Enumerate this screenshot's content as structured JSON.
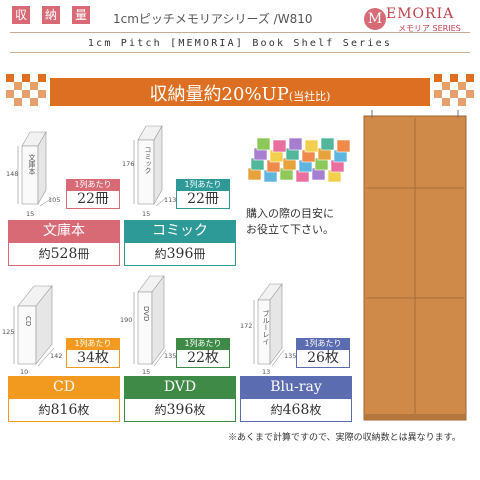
{
  "header": {
    "title_chars": [
      "収",
      "納",
      "量"
    ],
    "series_name": "1cmピッチメモリアシリーズ /W810",
    "subtitle": "1cm Pitch [MEMORIA] Book Shelf Series",
    "logo_text": "EMORIA",
    "logo_sub": "メモリア SERIES",
    "logo_mark": "M"
  },
  "banner": {
    "main": "収納量約20%UP",
    "suffix": "(当社比)"
  },
  "colors": {
    "accent_orange": "#dc6f21",
    "bunkobon": "#d86a76",
    "comic": "#2e9a97",
    "cd": "#f19a1f",
    "dvd": "#3e8a46",
    "bluray": "#5c6cb0"
  },
  "per_row_label": "1列あたり",
  "categories": [
    {
      "key": "bunkobon",
      "spine": "文庫本",
      "height": "148",
      "width": "105",
      "depth": "15",
      "per_row": "22冊",
      "name": "文庫本",
      "total_prefix": "約",
      "total_num": "528",
      "total_unit": "冊"
    },
    {
      "key": "comic",
      "spine": "コミック",
      "height": "176",
      "width": "113",
      "depth": "15",
      "per_row": "22冊",
      "name": "コミック",
      "total_prefix": "約",
      "total_num": "396",
      "total_unit": "冊"
    },
    {
      "key": "cd",
      "spine": "CD",
      "height": "125",
      "width": "142",
      "depth": "10",
      "per_row": "34枚",
      "name": "CD",
      "total_prefix": "約",
      "total_num": "816",
      "total_unit": "枚"
    },
    {
      "key": "dvd",
      "spine": "DVD",
      "height": "190",
      "width": "135",
      "depth": "15",
      "per_row": "22枚",
      "name": "DVD",
      "total_prefix": "約",
      "total_num": "396",
      "total_unit": "枚"
    },
    {
      "key": "bluray",
      "spine": "ブルーレイ",
      "height": "172",
      "width": "135",
      "depth": "13",
      "per_row": "26枚",
      "name": "Blu-ray",
      "total_prefix": "約",
      "total_num": "468",
      "total_unit": "枚"
    }
  ],
  "advice": {
    "line1": "購入の際の目安に",
    "line2": "お役立て下さい。"
  },
  "note": "※あくまで計算ですので、実際の収納数とは異なります。"
}
